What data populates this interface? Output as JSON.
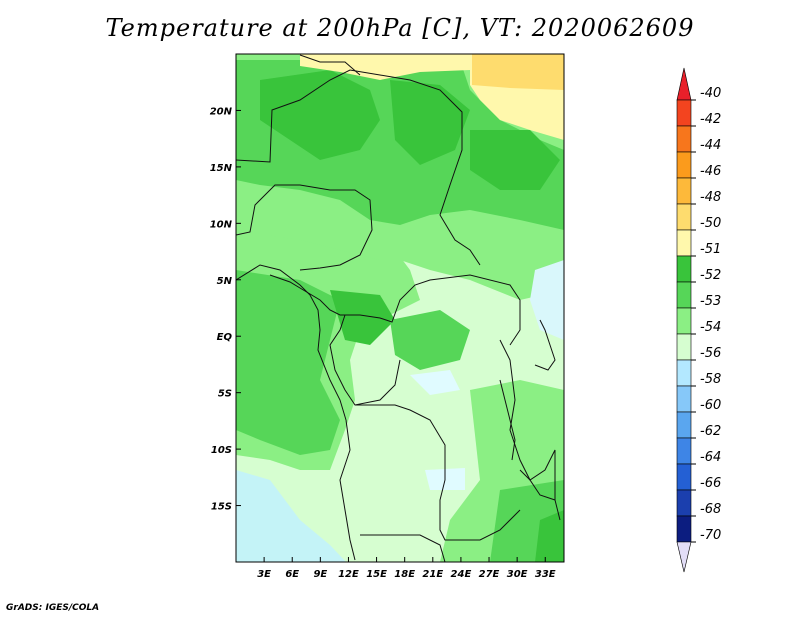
{
  "chart_data": {
    "type": "heatmap",
    "title": "Temperature at 200hPa [C], VT: 2020062609",
    "xlabel": "",
    "ylabel": "",
    "x_ticks": [
      "3E",
      "6E",
      "9E",
      "12E",
      "15E",
      "18E",
      "21E",
      "24E",
      "27E",
      "30E",
      "33E"
    ],
    "x_tick_values": [
      3,
      6,
      9,
      12,
      15,
      18,
      21,
      24,
      27,
      30,
      33
    ],
    "y_ticks": [
      "20N",
      "15N",
      "10N",
      "5N",
      "EQ",
      "5S",
      "10S",
      "15S"
    ],
    "y_tick_values": [
      20,
      15,
      10,
      5,
      0,
      -5,
      -10,
      -15
    ],
    "xlim": [
      0,
      35
    ],
    "ylim": [
      -20,
      25
    ],
    "colorbar": {
      "labels": [
        "-40",
        "-42",
        "-44",
        "-46",
        "-48",
        "-50",
        "-51",
        "-52",
        "-53",
        "-54",
        "-56",
        "-58",
        "-60",
        "-62",
        "-64",
        "-66",
        "-68",
        "-70"
      ],
      "colors": [
        "#e8202a",
        "#f3441f",
        "#f7761c",
        "#fb9b1c",
        "#fdb93a",
        "#fedc6e",
        "#fff8ac",
        "#39c43b",
        "#56d658",
        "#8bef84",
        "#d6fed0",
        "#b3e8ff",
        "#86c8f9",
        "#5aa6ef",
        "#3e85e6",
        "#2460d4",
        "#1b3fae",
        "#0c1d80",
        "#e2ddf7"
      ]
    },
    "regions": [
      {
        "name": "warm-north-yellow",
        "value": -50,
        "color": "#fff8ac"
      },
      {
        "name": "warm-northeast-orange",
        "value": -48,
        "color": "#fedc6e"
      },
      {
        "name": "dark-green-core",
        "value": -52,
        "color": "#39c43b"
      },
      {
        "name": "mid-green",
        "value": -53,
        "color": "#56d658"
      },
      {
        "name": "light-green",
        "value": -54,
        "color": "#8bef84"
      },
      {
        "name": "pale-green",
        "value": -54,
        "color": "#d6fed0"
      },
      {
        "name": "pale-cyan",
        "value": -56,
        "color": "#b3e8ff"
      }
    ]
  },
  "credit": "GrADS: IGES/COLA"
}
